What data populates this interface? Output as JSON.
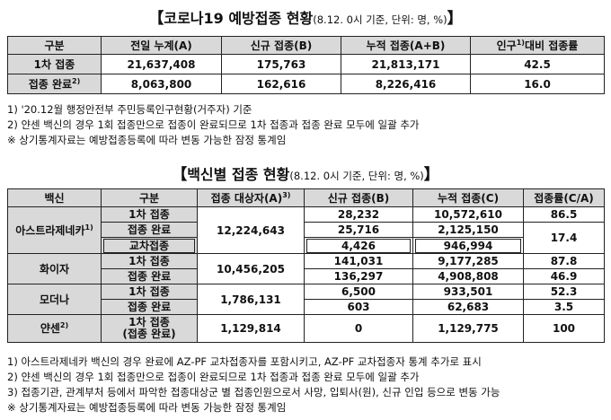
{
  "section1": {
    "title": "코로나19 예방접종 현황",
    "subtitle": "(8.12. 0시 기준, 단위: 명, %)",
    "headers": [
      "구분",
      "전일 누계(A)",
      "신규 접종(B)",
      "누적 접종(A+B)",
      "인구",
      "대비 접종률"
    ],
    "header_sup": "1)",
    "rows": [
      {
        "label": "1차 접종",
        "label_sup": "",
        "prev": "21,637,408",
        "new": "175,763",
        "cum": "21,813,171",
        "rate": "42.5"
      },
      {
        "label": "접종 완료",
        "label_sup": "2)",
        "prev": "8,063,800",
        "new": "162,616",
        "cum": "8,226,416",
        "rate": "16.0"
      }
    ],
    "notes": [
      "1) '20.12월 행정안전부 주민등록인구현황(거주자) 기준",
      "2) 얀센 백신의 경우 1회 접종만으로 접종이 완료되므로 1차 접종과 접종 완료 모두에 일괄 추가",
      "※ 상기통계자료는 예방접종등록에 따라 변동 가능한 잠정 통계임"
    ]
  },
  "section2": {
    "title": "백신별 접종 현황",
    "subtitle": "(8.12. 0시 기준, 단위: 명, %)",
    "headers": [
      "백신",
      "구분",
      "접종 대상자(A)",
      "신규 접종(B)",
      "누적 접종(C)",
      "접종률(C/A)"
    ],
    "header_sup": "3)",
    "vaccines": {
      "az": {
        "name": "아스트라제네카",
        "sup": "1)",
        "target": "12,224,643",
        "r1_label": "1차 접종",
        "r1_new": "28,232",
        "r1_cum": "10,572,610",
        "r1_rate": "86.5",
        "r2_label": "접종 완료",
        "r2_new": "25,716",
        "r2_cum": "2,125,150",
        "r2_rate": "17.4",
        "r3_label": "교차접종",
        "r3_new": "4,426",
        "r3_cum": "946,994"
      },
      "pfizer": {
        "name": "화이자",
        "target": "10,456,205",
        "r1_label": "1차 접종",
        "r1_new": "141,031",
        "r1_cum": "9,177,285",
        "r1_rate": "87.8",
        "r2_label": "접종 완료",
        "r2_new": "136,297",
        "r2_cum": "4,908,808",
        "r2_rate": "46.9"
      },
      "moderna": {
        "name": "모더나",
        "target": "1,786,131",
        "r1_label": "1차 접종",
        "r1_new": "6,500",
        "r1_cum": "933,501",
        "r1_rate": "52.3",
        "r2_label": "접종 완료",
        "r2_new": "603",
        "r2_cum": "62,683",
        "r2_rate": "3.5"
      },
      "janssen": {
        "name": "얀센",
        "sup": "2)",
        "target": "1,129,814",
        "label_line1": "1차 접종",
        "label_line2": "(접종 완료)",
        "new": "0",
        "cum": "1,129,775",
        "rate": "100"
      }
    },
    "notes": [
      "1) 아스트라제네카 백신의 경우 완료에 AZ-PF 교차접종자를 포함시키고, AZ-PF 교차접종자 통계 추가로 표시",
      "2) 얀센 백신의 경우 1회 접종만으로 접종이 완료되므로 1차 접종과 접종 완료 모두에 일괄 추가",
      "3) 접종기관, 관계부처 등에서 파악한 접종대상군 별 접종인원으로서 사망, 입퇴사(원), 신규 인입 등으로 변동 가능",
      "※ 상기통계자료는 예방접종등록에 따라 변동 가능한 잠정 통계임"
    ]
  }
}
